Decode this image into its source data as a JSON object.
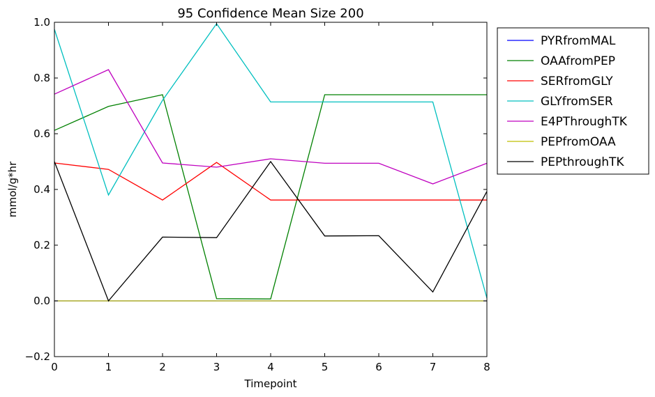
{
  "chart_data": {
    "type": "line",
    "title": "95 Confidence Mean Size 200",
    "xlabel": "Timepoint",
    "ylabel": "mmol/g*hr",
    "xlim": [
      0,
      8
    ],
    "ylim": [
      -0.2,
      1.0
    ],
    "x_ticks": [
      "0",
      "1",
      "2",
      "3",
      "4",
      "5",
      "6",
      "7",
      "8"
    ],
    "y_ticks": [
      "−0.2",
      "0.0",
      "0.2",
      "0.4",
      "0.6",
      "0.8",
      "1.0"
    ],
    "y_tick_values": [
      -0.2,
      0.0,
      0.2,
      0.4,
      0.6,
      0.8,
      1.0
    ],
    "grid": false,
    "legend_position": "outside-right",
    "x": [
      0,
      1,
      2,
      3,
      4,
      5,
      6,
      7,
      8
    ],
    "series": [
      {
        "name": "PYRfromMAL",
        "color": "#0000ff",
        "values": [
          0,
          0,
          0,
          0,
          0,
          0,
          0,
          0,
          0
        ]
      },
      {
        "name": "OAAfromPEP",
        "color": "#008000",
        "values": [
          0.612,
          0.698,
          0.74,
          0.008,
          0.007,
          0.74,
          0.74,
          0.74,
          0.74
        ]
      },
      {
        "name": "SERfromGLY",
        "color": "#ff0000",
        "values": [
          0.495,
          0.472,
          0.362,
          0.497,
          0.362,
          0.362,
          0.362,
          0.362,
          0.362
        ]
      },
      {
        "name": "GLYfromSER",
        "color": "#00bfbf",
        "values": [
          0.975,
          0.38,
          0.72,
          0.995,
          0.714,
          0.714,
          0.714,
          0.714,
          0.01
        ]
      },
      {
        "name": "E4PThroughTK",
        "color": "#bf00bf",
        "values": [
          0.742,
          0.83,
          0.495,
          0.48,
          0.51,
          0.494,
          0.494,
          0.42,
          0.494
        ]
      },
      {
        "name": "PEPfromOAA",
        "color": "#bfbf00",
        "values": [
          0,
          0,
          0,
          0,
          0,
          0,
          0,
          0,
          0
        ]
      },
      {
        "name": "PEPthroughTK",
        "color": "#000000",
        "values": [
          0.5,
          0.0,
          0.229,
          0.227,
          0.5,
          0.233,
          0.234,
          0.032,
          0.393
        ]
      }
    ]
  }
}
